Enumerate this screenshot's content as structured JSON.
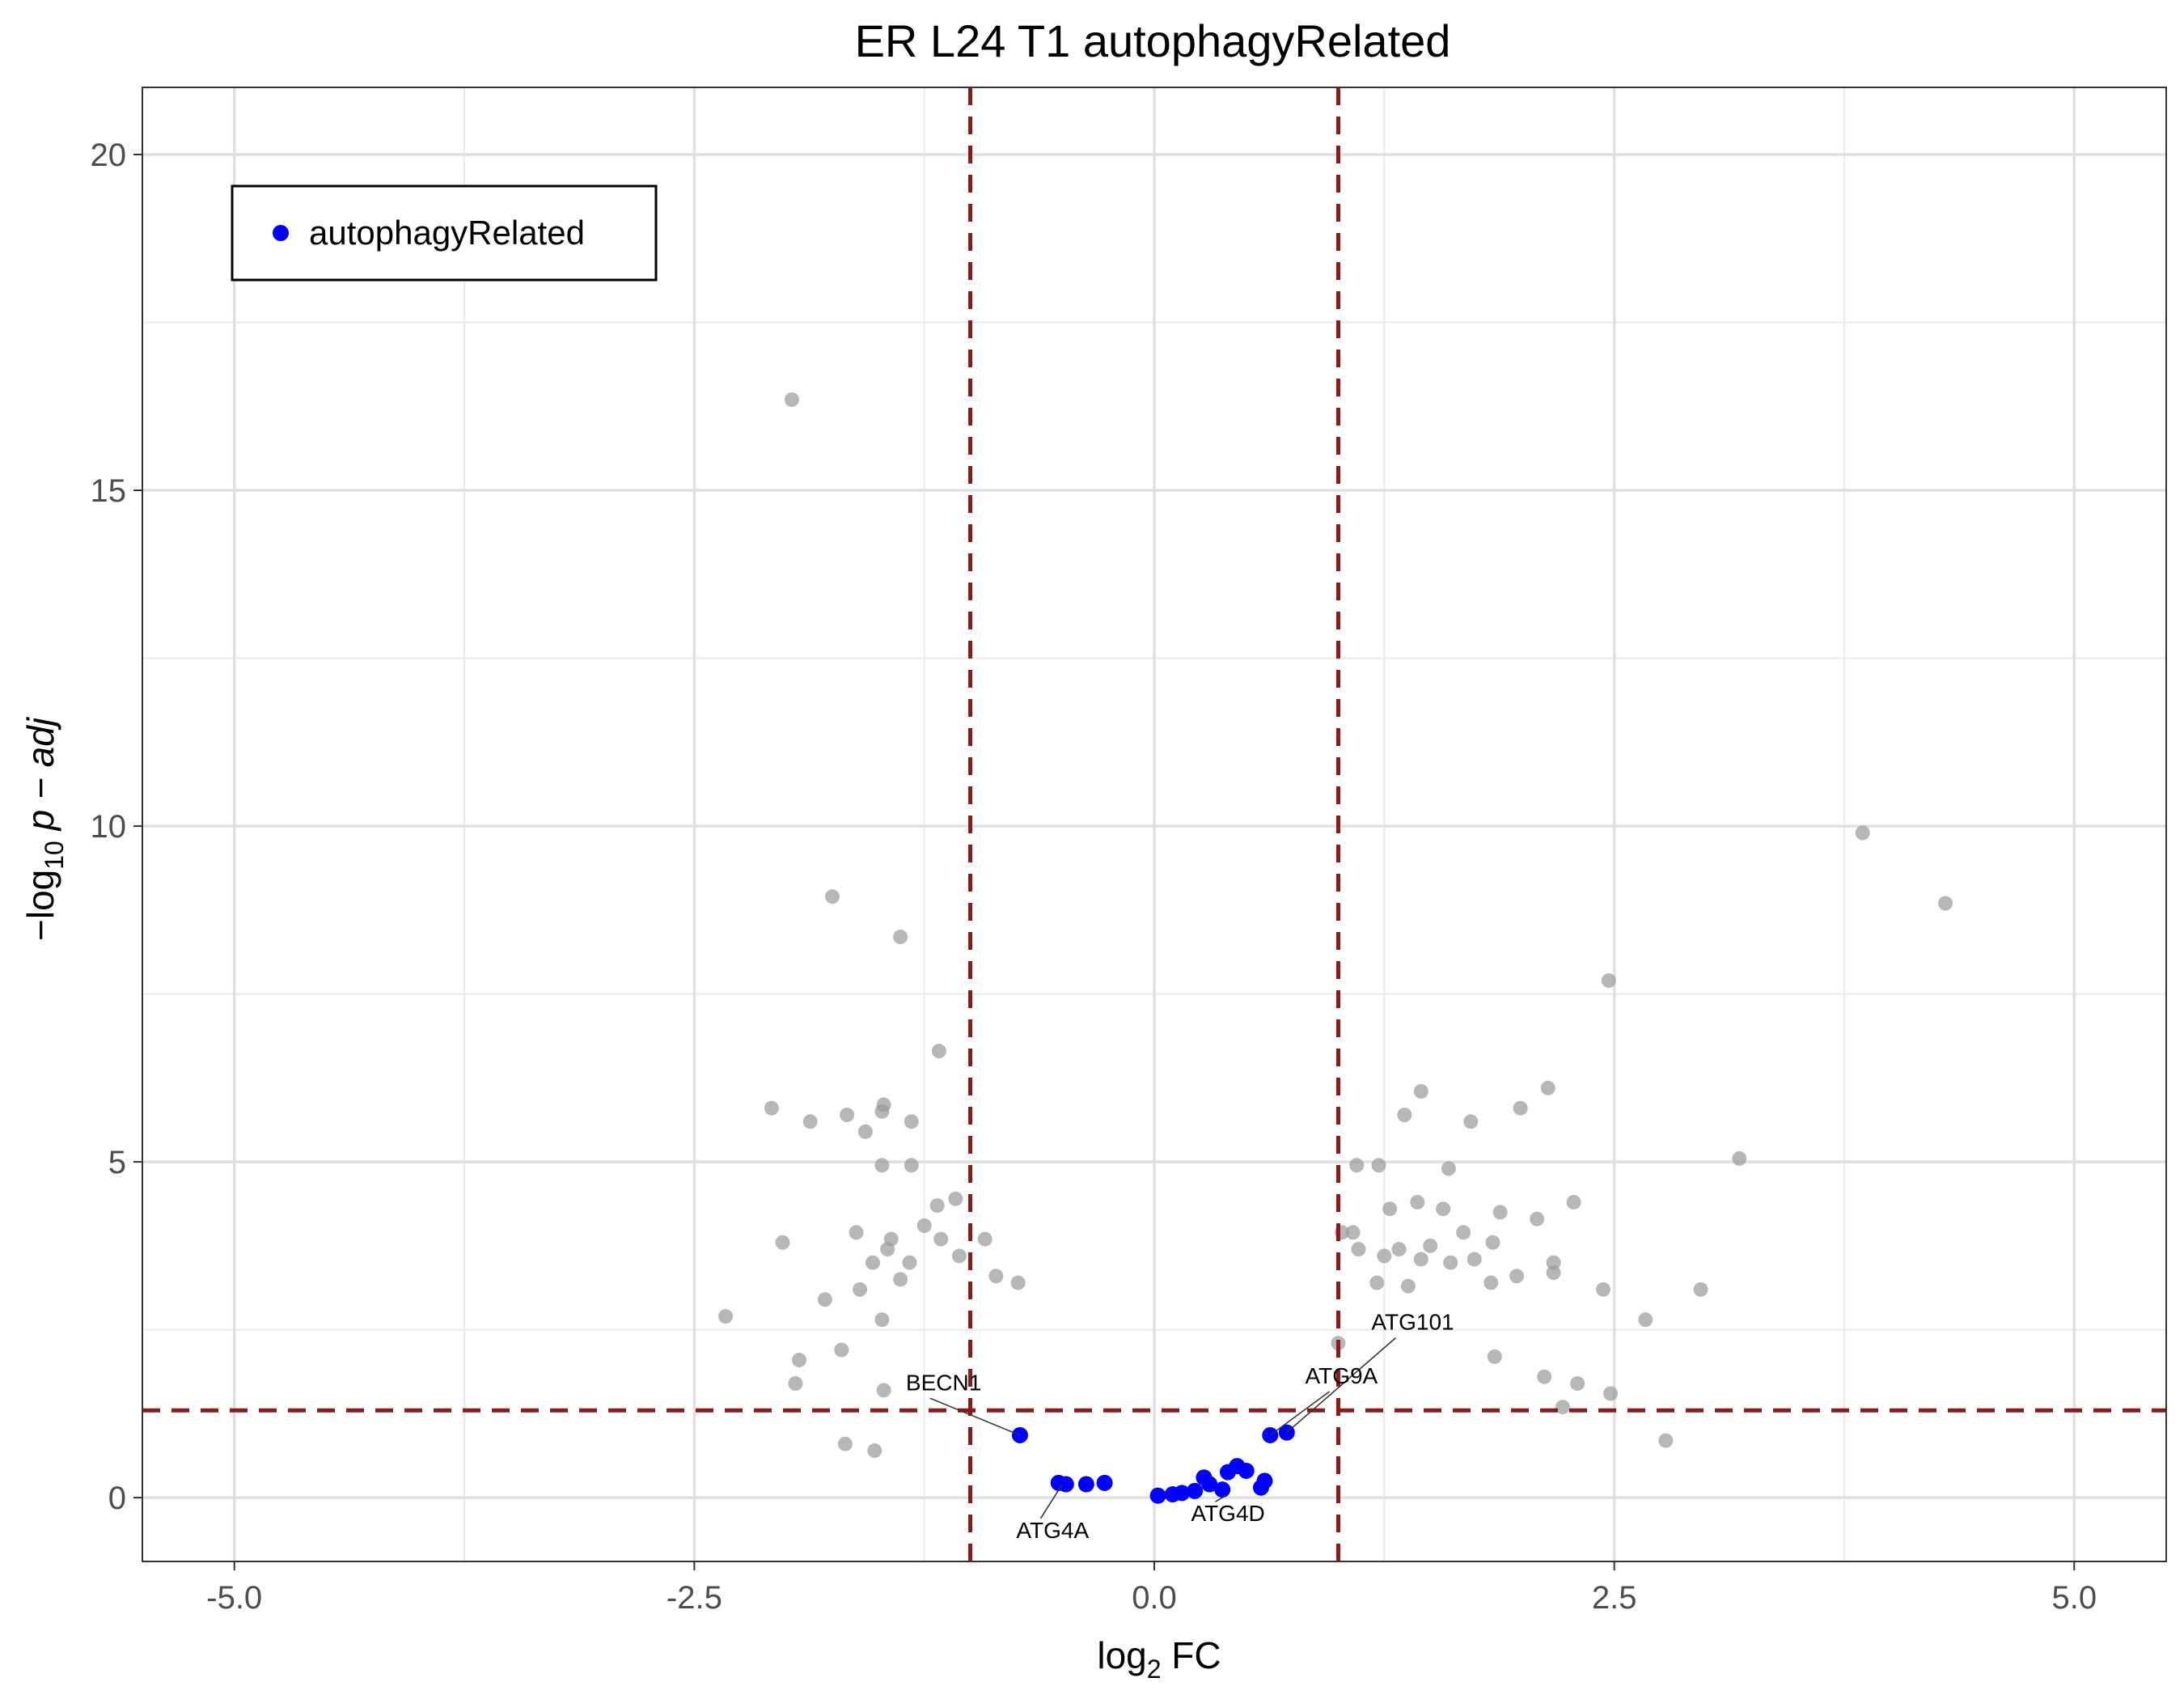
{
  "chart_data": {
    "type": "scatter",
    "title": "ER L24 T1 autophagyRelated",
    "xlabel": {
      "prefix": "log",
      "sub": "2",
      "suffix": " FC"
    },
    "ylabel": {
      "prefix": "−log",
      "sub": "10",
      "suffix": " p − adj"
    },
    "xlim": [
      -5.5,
      5.5
    ],
    "ylim": [
      -0.95,
      21.0
    ],
    "x_ticks": [
      -5.0,
      -2.5,
      0.0,
      2.5,
      5.0
    ],
    "x_tick_labels": [
      "-5.0",
      "-2.5",
      "0.0",
      "2.5",
      "5.0"
    ],
    "y_ticks": [
      0,
      5,
      10,
      15,
      20
    ],
    "y_tick_labels": [
      "0",
      "5",
      "10",
      "15",
      "20"
    ],
    "grid": true,
    "thresholds": {
      "fc": [
        -1.0,
        1.0
      ],
      "padj": 1.3,
      "color": "#8b1a1a"
    },
    "legend": {
      "position": "top-left",
      "entries": [
        {
          "label": "autophagyRelated",
          "color": "#0000ff"
        }
      ]
    },
    "series": [
      {
        "name": "background",
        "color": "#999999",
        "points": [
          [
            -1.97,
            16.35
          ],
          [
            3.85,
            9.9
          ],
          [
            4.3,
            8.85
          ],
          [
            -1.75,
            8.95
          ],
          [
            -1.38,
            8.35
          ],
          [
            -1.17,
            6.65
          ],
          [
            2.47,
            7.7
          ],
          [
            -2.08,
            5.8
          ],
          [
            -1.87,
            5.6
          ],
          [
            -1.67,
            5.7
          ],
          [
            -1.48,
            5.75
          ],
          [
            -1.47,
            5.85
          ],
          [
            -1.57,
            5.45
          ],
          [
            -1.32,
            5.6
          ],
          [
            1.45,
            6.05
          ],
          [
            2.14,
            6.1
          ],
          [
            1.99,
            5.8
          ],
          [
            1.36,
            5.7
          ],
          [
            1.72,
            5.6
          ],
          [
            3.18,
            5.05
          ],
          [
            -1.48,
            4.95
          ],
          [
            -1.32,
            4.95
          ],
          [
            1.1,
            4.95
          ],
          [
            1.22,
            4.95
          ],
          [
            1.6,
            4.9
          ],
          [
            -1.18,
            4.35
          ],
          [
            -1.08,
            4.45
          ],
          [
            2.28,
            4.4
          ],
          [
            1.28,
            4.3
          ],
          [
            1.43,
            4.4
          ],
          [
            1.57,
            4.3
          ],
          [
            1.88,
            4.25
          ],
          [
            2.08,
            4.15
          ],
          [
            -1.25,
            4.05
          ],
          [
            -1.43,
            3.85
          ],
          [
            -1.62,
            3.95
          ],
          [
            -2.02,
            3.8
          ],
          [
            -1.16,
            3.85
          ],
          [
            -0.92,
            3.85
          ],
          [
            1.08,
            3.95
          ],
          [
            1.68,
            3.95
          ],
          [
            1.5,
            3.75
          ],
          [
            1.33,
            3.7
          ],
          [
            1.84,
            3.8
          ],
          [
            1.02,
            3.95
          ],
          [
            -1.45,
            3.7
          ],
          [
            -1.33,
            3.5
          ],
          [
            -1.53,
            3.5
          ],
          [
            -1.06,
            3.6
          ],
          [
            1.11,
            3.7
          ],
          [
            1.25,
            3.6
          ],
          [
            1.45,
            3.55
          ],
          [
            1.61,
            3.5
          ],
          [
            1.74,
            3.55
          ],
          [
            2.17,
            3.5
          ],
          [
            -1.38,
            3.25
          ],
          [
            -1.6,
            3.1
          ],
          [
            -0.86,
            3.3
          ],
          [
            -0.74,
            3.2
          ],
          [
            1.21,
            3.2
          ],
          [
            1.38,
            3.15
          ],
          [
            1.83,
            3.2
          ],
          [
            1.97,
            3.3
          ],
          [
            2.17,
            3.35
          ],
          [
            -1.79,
            2.95
          ],
          [
            -2.33,
            2.7
          ],
          [
            2.44,
            3.1
          ],
          [
            2.97,
            3.1
          ],
          [
            2.67,
            2.65
          ],
          [
            -1.48,
            2.65
          ],
          [
            -1.7,
            2.2
          ],
          [
            -1.93,
            2.05
          ],
          [
            1.0,
            2.3
          ],
          [
            1.85,
            2.1
          ],
          [
            2.3,
            1.7
          ],
          [
            2.12,
            1.8
          ],
          [
            2.48,
            1.55
          ],
          [
            -1.95,
            1.7
          ],
          [
            -1.47,
            1.6
          ],
          [
            2.78,
            0.85
          ],
          [
            2.22,
            1.35
          ],
          [
            -1.68,
            0.8
          ],
          [
            -1.52,
            0.7
          ]
        ]
      },
      {
        "name": "autophagyRelated",
        "color": "#0000ff",
        "points": [
          [
            -0.73,
            0.93
          ],
          [
            0.72,
            0.97
          ],
          [
            0.63,
            0.93
          ],
          [
            -0.52,
            0.22
          ],
          [
            -0.48,
            0.2
          ],
          [
            -0.37,
            0.2
          ],
          [
            -0.27,
            0.22
          ],
          [
            0.02,
            0.03
          ],
          [
            0.1,
            0.05
          ],
          [
            0.15,
            0.07
          ],
          [
            0.22,
            0.1
          ],
          [
            0.27,
            0.3
          ],
          [
            0.3,
            0.2
          ],
          [
            0.37,
            0.12
          ],
          [
            0.4,
            0.38
          ],
          [
            0.45,
            0.47
          ],
          [
            0.5,
            0.4
          ],
          [
            0.58,
            0.15
          ],
          [
            0.6,
            0.25
          ]
        ]
      }
    ],
    "labels": [
      {
        "text": "BECN1",
        "x": -0.73,
        "y": 0.93,
        "lx": -1.35,
        "ly": 1.6
      },
      {
        "text": "ATG101",
        "x": 0.72,
        "y": 0.97,
        "lx": 1.18,
        "ly": 2.5
      },
      {
        "text": "ATG9A",
        "x": 0.63,
        "y": 0.93,
        "lx": 0.82,
        "ly": 1.7
      },
      {
        "text": "ATG4A",
        "x": -0.5,
        "y": 0.2,
        "lx": -0.75,
        "ly": -0.6
      },
      {
        "text": "ATG4D",
        "x": 0.4,
        "y": 0.05,
        "lx": 0.2,
        "ly": -0.35
      }
    ]
  }
}
